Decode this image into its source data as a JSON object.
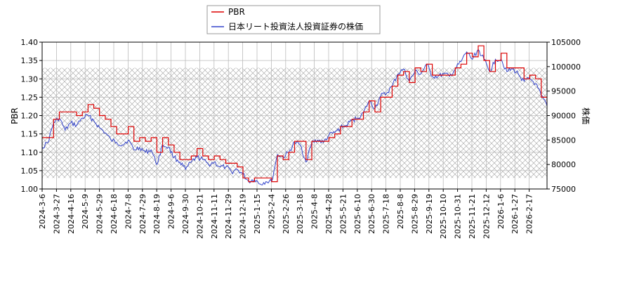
{
  "chart_data": {
    "type": "line",
    "x_tick_labels": [
      "2024-3-6",
      "2024-3-27",
      "2024-4-16",
      "2024-5-9",
      "2024-5-29",
      "2024-6-18",
      "2024-7-8",
      "2024-7-29",
      "2024-8-19",
      "2024-9-6",
      "2024-9-30",
      "2024-10-21",
      "2024-11-11",
      "2024-11-29",
      "2024-12-19",
      "2025-1-15",
      "2025-2-4",
      "2025-2-26",
      "2025-3-18",
      "2025-4-8",
      "2025-4-28",
      "2025-5-21",
      "2025-6-10",
      "2025-6-30",
      "2025-7-18",
      "2025-8-8",
      "2025-8-29",
      "2025-9-19",
      "2025-10-10",
      "2025-10-31",
      "2025-11-21",
      "2025-12-12",
      "2026-1-6",
      "2026-1-27",
      "2026-2-17"
    ],
    "y_left": {
      "label": "PBR",
      "ylim": [
        1.0,
        1.4
      ],
      "ticks": [
        "1.00",
        "1.05",
        "1.10",
        "1.15",
        "1.20",
        "1.25",
        "1.30",
        "1.35",
        "1.40"
      ]
    },
    "y_right": {
      "label": "株価",
      "ylim": [
        75000,
        105000
      ],
      "ticks": [
        "75000",
        "80000",
        "85000",
        "90000",
        "95000",
        "100000",
        "105000"
      ]
    },
    "hatch_band": {
      "from_pbr": 1.03,
      "to_pbr": 1.33
    },
    "grid": true,
    "legend": {
      "placement": "top-center",
      "entries": [
        "PBR",
        "日本リート投資法人投資証券の株価"
      ]
    },
    "colors": {
      "pbr": "#dd0000",
      "price": "#3344cc",
      "grid": "#bbbbbb",
      "hatch": "#a0a0a0"
    },
    "series": [
      {
        "name": "PBR",
        "axis": "left",
        "values": [
          1.14,
          1.14,
          1.19,
          1.21,
          1.21,
          1.21,
          1.2,
          1.21,
          1.23,
          1.22,
          1.2,
          1.19,
          1.17,
          1.15,
          1.15,
          1.17,
          1.13,
          1.14,
          1.13,
          1.14,
          1.1,
          1.14,
          1.12,
          1.1,
          1.08,
          1.08,
          1.09,
          1.11,
          1.09,
          1.08,
          1.09,
          1.08,
          1.07,
          1.07,
          1.06,
          1.03,
          1.02,
          1.03,
          1.03,
          1.03,
          1.02,
          1.09,
          1.08,
          1.1,
          1.13,
          1.13,
          1.08,
          1.13,
          1.13,
          1.13,
          1.14,
          1.15,
          1.17,
          1.17,
          1.19,
          1.19,
          1.21,
          1.24,
          1.21,
          1.25,
          1.25,
          1.28,
          1.31,
          1.32,
          1.29,
          1.33,
          1.32,
          1.34,
          1.31,
          1.31,
          1.31,
          1.31,
          1.33,
          1.34,
          1.37,
          1.36,
          1.39,
          1.35,
          1.32,
          1.35,
          1.37,
          1.33,
          1.33,
          1.33,
          1.3,
          1.31,
          1.3,
          1.25,
          1.23
        ]
      },
      {
        "name": "日本リート投資法人投資証券の株価",
        "axis": "right",
        "values": [
          83500,
          84500,
          88500,
          89500,
          87000,
          88500,
          88000,
          89500,
          90000,
          89000,
          87500,
          86500,
          85000,
          84500,
          84000,
          85000,
          83000,
          83500,
          82500,
          83000,
          80000,
          84000,
          83500,
          81500,
          80500,
          79000,
          80500,
          81500,
          81000,
          80000,
          80500,
          79500,
          79500,
          78500,
          79000,
          78000,
          76500,
          77000,
          76000,
          76500,
          76500,
          82000,
          81500,
          82500,
          84500,
          84000,
          80500,
          84500,
          85000,
          84500,
          86000,
          86500,
          87500,
          88000,
          89000,
          89500,
          90500,
          93000,
          91500,
          94000,
          94500,
          96000,
          98500,
          99500,
          97000,
          99000,
          98500,
          100500,
          98000,
          98000,
          98500,
          98000,
          99500,
          101000,
          103000,
          101500,
          103500,
          101500,
          99000,
          101500,
          101500,
          99000,
          99500,
          98500,
          97000,
          97500,
          96500,
          94000,
          92000
        ]
      }
    ]
  }
}
